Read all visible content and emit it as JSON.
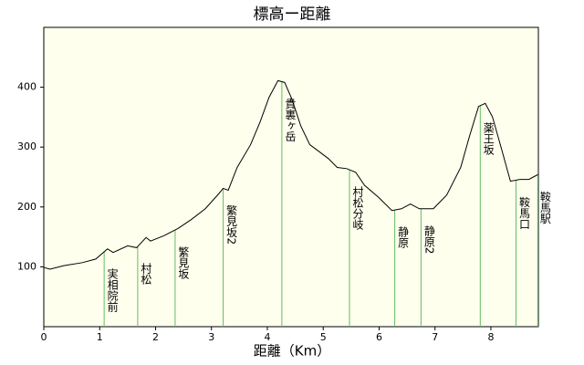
{
  "chart_data": {
    "type": "line",
    "title": "標高ー距離",
    "x_label": "距離（Km）",
    "x": [
      0,
      0.11,
      0.36,
      0.69,
      0.93,
      1.14,
      1.24,
      1.5,
      1.66,
      1.83,
      1.91,
      2.15,
      2.4,
      2.64,
      2.89,
      3.13,
      3.21,
      3.3,
      3.46,
      3.7,
      3.87,
      4.03,
      4.19,
      4.31,
      4.44,
      4.6,
      4.76,
      4.92,
      5.09,
      5.25,
      5.42,
      5.58,
      5.74,
      5.99,
      6.23,
      6.4,
      6.56,
      6.72,
      6.97,
      7.21,
      7.46,
      7.62,
      7.78,
      7.9,
      8.03,
      8.19,
      8.35,
      8.52,
      8.68,
      8.84
    ],
    "values": [
      99,
      96,
      102,
      107,
      113,
      130,
      124,
      135,
      132,
      149,
      143,
      152,
      164,
      179,
      197,
      222,
      231,
      228,
      266,
      304,
      342,
      383,
      411,
      408,
      380,
      335,
      304,
      293,
      281,
      266,
      264,
      258,
      236,
      216,
      194,
      197,
      205,
      197,
      197,
      220,
      266,
      319,
      368,
      373,
      350,
      297,
      243,
      246,
      246,
      254
    ],
    "color": "#000000",
    "landmarks": [
      {
        "name": "実相院前",
        "x": 1.08
      },
      {
        "name": "村松",
        "x": 1.68
      },
      {
        "name": "繁見坂",
        "x": 2.35
      },
      {
        "name": "繁見坂2",
        "x": 3.21
      },
      {
        "name": "貴裏ヶ岳",
        "x": 4.26
      },
      {
        "name": "村松分岐",
        "x": 5.47
      },
      {
        "name": "静原",
        "x": 6.28
      },
      {
        "name": "静原2",
        "x": 6.75
      },
      {
        "name": "薬王坂",
        "x": 7.81
      },
      {
        "name": "鞍馬口",
        "x": 8.45
      },
      {
        "name": "鞍馬駅",
        "x": 8.84
      }
    ],
    "landmark_color": "#66bb66",
    "xlim": [
      0,
      8.85
    ],
    "xticks": [
      0,
      1,
      2,
      3,
      4,
      5,
      6,
      7,
      8
    ],
    "ylim": [
      0,
      500
    ],
    "yticks": [
      100,
      200,
      300,
      400
    ]
  }
}
